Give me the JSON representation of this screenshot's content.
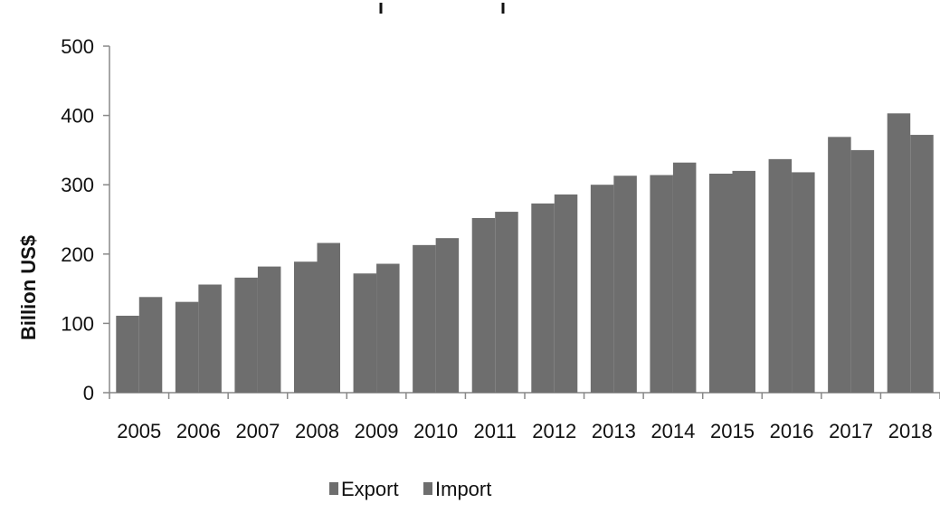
{
  "chart_data": {
    "type": "bar",
    "title": "",
    "xlabel": "",
    "ylabel": "Billion US$",
    "ylim": [
      0,
      500
    ],
    "yticks": [
      0,
      100,
      200,
      300,
      400,
      500
    ],
    "grid": false,
    "legend_position": "bottom-center",
    "categories": [
      "2005",
      "2006",
      "2007",
      "2008",
      "2009",
      "2010",
      "2011",
      "2012",
      "2013",
      "2014",
      "2015",
      "2016",
      "2017",
      "2018"
    ],
    "series": [
      {
        "name": "Export",
        "color": "#6e6e6e",
        "values": [
          111,
          131,
          166,
          189,
          172,
          213,
          252,
          273,
          300,
          314,
          316,
          337,
          369,
          403
        ]
      },
      {
        "name": "Import",
        "color": "#6e6e6e",
        "values": [
          138,
          156,
          182,
          216,
          186,
          223,
          261,
          286,
          313,
          332,
          320,
          318,
          350,
          372
        ]
      }
    ]
  }
}
